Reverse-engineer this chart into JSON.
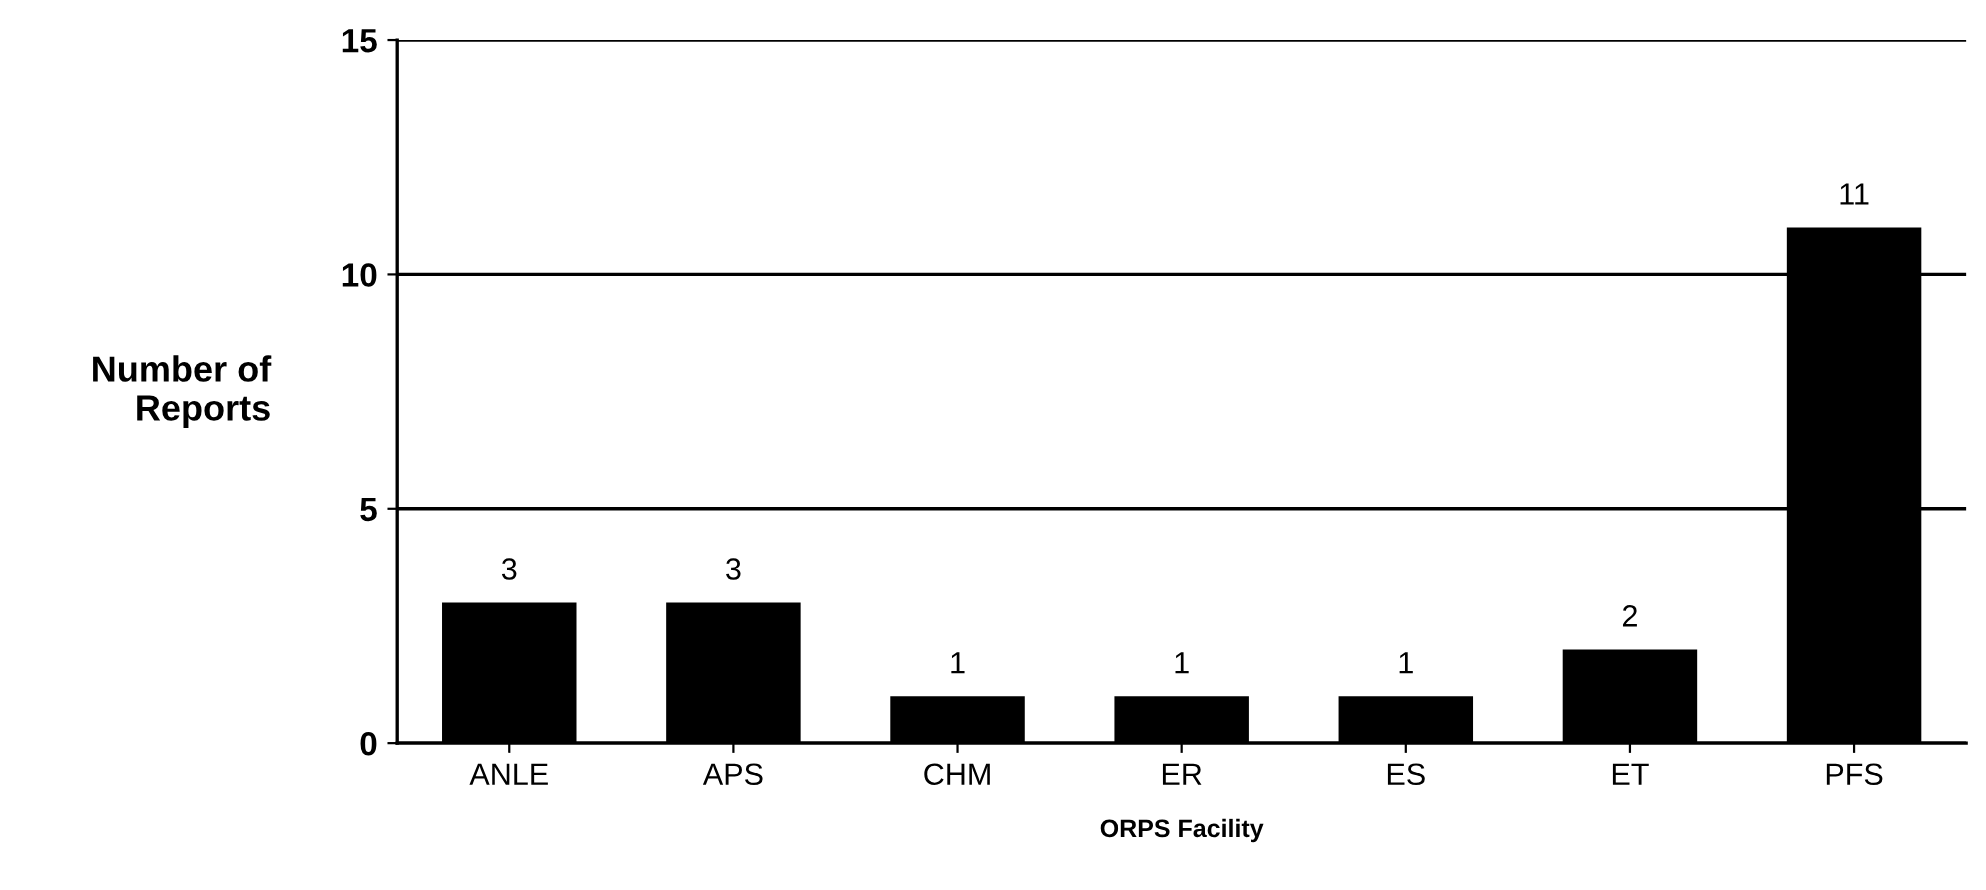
{
  "chart_data": {
    "type": "bar",
    "xlabel": "ORPS Facility",
    "ylabel": "Number of\nReports",
    "categories": [
      "ANLE",
      "APS",
      "CHM",
      "ER",
      "ES",
      "ET",
      "PFS"
    ],
    "values": [
      3,
      3,
      1,
      1,
      1,
      2,
      11
    ],
    "color": "#000000",
    "ylim": [
      0,
      15
    ],
    "yticks": [
      0,
      5,
      10,
      15
    ],
    "grid": "y",
    "data_labels": true,
    "legend": false
  }
}
